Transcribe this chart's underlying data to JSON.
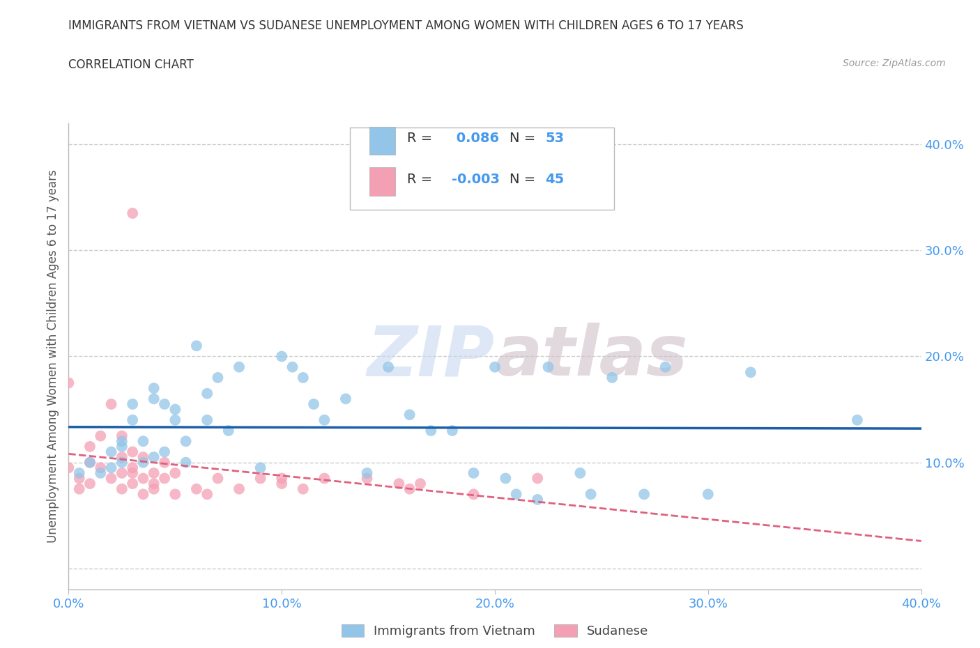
{
  "title1": "IMMIGRANTS FROM VIETNAM VS SUDANESE UNEMPLOYMENT AMONG WOMEN WITH CHILDREN AGES 6 TO 17 YEARS",
  "title2": "CORRELATION CHART",
  "source": "Source: ZipAtlas.com",
  "ylabel": "Unemployment Among Women with Children Ages 6 to 17 years",
  "xlim": [
    0.0,
    0.4
  ],
  "ylim": [
    -0.02,
    0.42
  ],
  "xticks": [
    0.0,
    0.1,
    0.2,
    0.3,
    0.4
  ],
  "yticks": [
    0.0,
    0.1,
    0.2,
    0.3,
    0.4
  ],
  "xticklabels": [
    "0.0%",
    "10.0%",
    "20.0%",
    "30.0%",
    "40.0%"
  ],
  "yticklabels": [
    "",
    "10.0%",
    "20.0%",
    "30.0%",
    "40.0%"
  ],
  "color_vietnam": "#92C5E8",
  "color_sudanese": "#F4A0B4",
  "line_color_vietnam": "#1A5FA8",
  "line_color_sudanese": "#E06080",
  "r_vietnam": 0.086,
  "n_vietnam": 53,
  "r_sudanese": -0.003,
  "n_sudanese": 45,
  "watermark_zip": "ZIP",
  "watermark_atlas": "atlas",
  "legend_label_vietnam": "Immigrants from Vietnam",
  "legend_label_sudanese": "Sudanese",
  "vietnam_x": [
    0.005,
    0.01,
    0.015,
    0.02,
    0.02,
    0.025,
    0.025,
    0.025,
    0.03,
    0.03,
    0.035,
    0.035,
    0.04,
    0.04,
    0.04,
    0.045,
    0.045,
    0.05,
    0.05,
    0.055,
    0.055,
    0.06,
    0.065,
    0.065,
    0.07,
    0.075,
    0.08,
    0.09,
    0.1,
    0.105,
    0.11,
    0.115,
    0.12,
    0.13,
    0.14,
    0.15,
    0.16,
    0.17,
    0.18,
    0.19,
    0.2,
    0.205,
    0.21,
    0.22,
    0.225,
    0.24,
    0.245,
    0.255,
    0.27,
    0.28,
    0.3,
    0.32,
    0.37
  ],
  "vietnam_y": [
    0.09,
    0.1,
    0.09,
    0.11,
    0.095,
    0.12,
    0.1,
    0.115,
    0.14,
    0.155,
    0.1,
    0.12,
    0.16,
    0.17,
    0.105,
    0.11,
    0.155,
    0.14,
    0.15,
    0.12,
    0.1,
    0.21,
    0.165,
    0.14,
    0.18,
    0.13,
    0.19,
    0.095,
    0.2,
    0.19,
    0.18,
    0.155,
    0.14,
    0.16,
    0.09,
    0.19,
    0.145,
    0.13,
    0.13,
    0.09,
    0.19,
    0.085,
    0.07,
    0.065,
    0.19,
    0.09,
    0.07,
    0.18,
    0.07,
    0.19,
    0.07,
    0.185,
    0.14
  ],
  "sudanese_x": [
    0.0,
    0.0,
    0.005,
    0.005,
    0.01,
    0.01,
    0.01,
    0.015,
    0.015,
    0.02,
    0.02,
    0.025,
    0.025,
    0.025,
    0.025,
    0.03,
    0.03,
    0.03,
    0.03,
    0.03,
    0.035,
    0.035,
    0.035,
    0.04,
    0.04,
    0.04,
    0.045,
    0.045,
    0.05,
    0.05,
    0.06,
    0.065,
    0.07,
    0.08,
    0.09,
    0.1,
    0.1,
    0.11,
    0.12,
    0.14,
    0.155,
    0.16,
    0.165,
    0.19,
    0.22
  ],
  "sudanese_y": [
    0.095,
    0.175,
    0.085,
    0.075,
    0.08,
    0.1,
    0.115,
    0.095,
    0.125,
    0.085,
    0.155,
    0.09,
    0.105,
    0.075,
    0.125,
    0.08,
    0.09,
    0.095,
    0.11,
    0.335,
    0.07,
    0.085,
    0.105,
    0.075,
    0.08,
    0.09,
    0.085,
    0.1,
    0.07,
    0.09,
    0.075,
    0.07,
    0.085,
    0.075,
    0.085,
    0.08,
    0.085,
    0.075,
    0.085,
    0.085,
    0.08,
    0.075,
    0.08,
    0.07,
    0.085
  ]
}
